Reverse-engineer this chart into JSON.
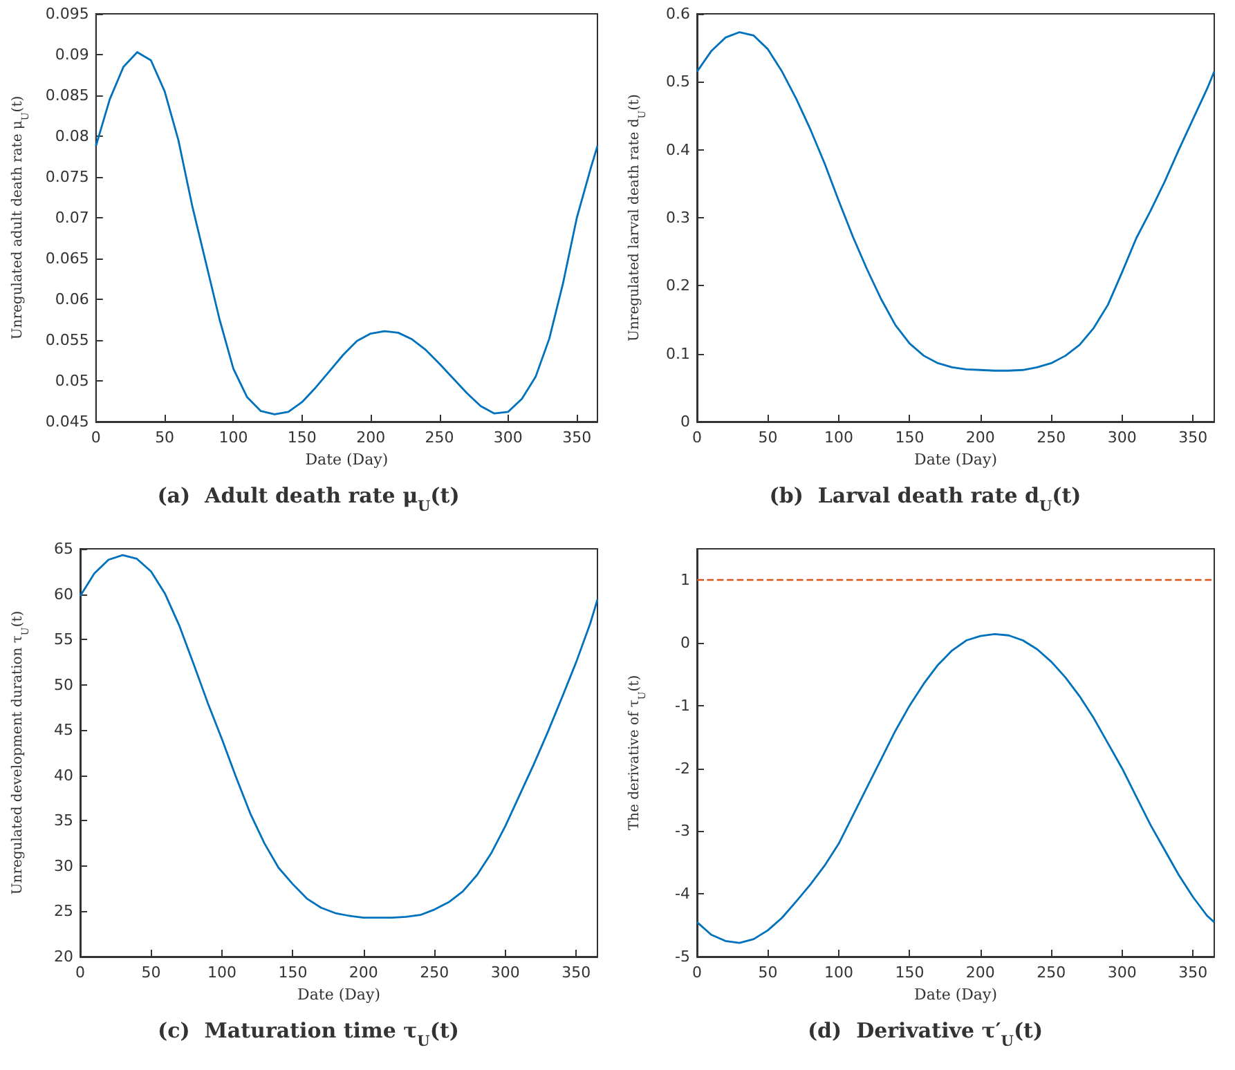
{
  "chart_data": [
    {
      "type": "line",
      "title": "(a)  Adult death rate μ$_{U}$(t)",
      "xlabel": "Date (Day)",
      "ylabel": "Unregulated adult death rate μ$_{U}$(t)",
      "x": [
        0,
        10,
        20,
        30,
        40,
        50,
        60,
        70,
        80,
        90,
        100,
        110,
        120,
        130,
        140,
        150,
        160,
        170,
        180,
        190,
        200,
        210,
        220,
        230,
        240,
        250,
        260,
        270,
        280,
        290,
        300,
        310,
        320,
        330,
        340,
        350,
        360,
        365
      ],
      "series": [
        {
          "color": "#0072bd",
          "values": [
            0.0788,
            0.0845,
            0.0885,
            0.0903,
            0.0893,
            0.0855,
            0.0795,
            0.0715,
            0.0645,
            0.0575,
            0.0515,
            0.048,
            0.0463,
            0.0459,
            0.0462,
            0.0474,
            0.0492,
            0.0512,
            0.0532,
            0.0549,
            0.0558,
            0.0561,
            0.0559,
            0.0551,
            0.0538,
            0.0521,
            0.0503,
            0.0485,
            0.0469,
            0.046,
            0.0462,
            0.0478,
            0.0505,
            0.0552,
            0.062,
            0.07,
            0.076,
            0.0788
          ]
        }
      ],
      "xlim": [
        0,
        365
      ],
      "xticks": [
        0,
        50,
        100,
        150,
        200,
        250,
        300,
        350
      ],
      "ylim": [
        0.045,
        0.095
      ],
      "yticks": [
        0.045,
        0.05,
        0.055,
        0.06,
        0.065,
        0.07,
        0.075,
        0.08,
        0.085,
        0.09,
        0.095
      ]
    },
    {
      "type": "line",
      "title": "(b)  Larval death rate d$_{U}$(t)",
      "xlabel": "Date (Day)",
      "ylabel": "Unregulated larval death rate d$_{U}$(t)",
      "x": [
        0,
        10,
        20,
        30,
        40,
        50,
        60,
        70,
        80,
        90,
        100,
        110,
        120,
        130,
        140,
        150,
        160,
        170,
        180,
        190,
        200,
        210,
        220,
        230,
        240,
        250,
        260,
        270,
        280,
        290,
        300,
        310,
        320,
        330,
        340,
        350,
        360,
        365
      ],
      "series": [
        {
          "color": "#0072bd",
          "values": [
            0.515,
            0.545,
            0.565,
            0.573,
            0.568,
            0.548,
            0.515,
            0.475,
            0.43,
            0.38,
            0.325,
            0.272,
            0.224,
            0.18,
            0.142,
            0.115,
            0.097,
            0.086,
            0.08,
            0.077,
            0.076,
            0.075,
            0.075,
            0.076,
            0.08,
            0.086,
            0.097,
            0.113,
            0.138,
            0.172,
            0.22,
            0.27,
            0.31,
            0.353,
            0.4,
            0.445,
            0.49,
            0.515
          ]
        }
      ],
      "xlim": [
        0,
        365
      ],
      "xticks": [
        0,
        50,
        100,
        150,
        200,
        250,
        300,
        350
      ],
      "ylim": [
        0,
        0.6
      ],
      "yticks": [
        0,
        0.1,
        0.2,
        0.3,
        0.4,
        0.5,
        0.6
      ]
    },
    {
      "type": "line",
      "title": "(c)  Maturation time τ$_{U}$(t)",
      "xlabel": "Date (Day)",
      "ylabel": "Unregulated development duration τ$_{U}$(t)",
      "x": [
        0,
        10,
        20,
        30,
        40,
        50,
        60,
        70,
        80,
        90,
        100,
        110,
        120,
        130,
        140,
        150,
        160,
        170,
        180,
        190,
        200,
        210,
        220,
        230,
        240,
        250,
        260,
        270,
        280,
        290,
        300,
        310,
        320,
        330,
        340,
        350,
        360,
        365
      ],
      "series": [
        {
          "color": "#0072bd",
          "values": [
            59.8,
            62.3,
            63.8,
            64.3,
            63.9,
            62.5,
            60,
            56.5,
            52.3,
            48,
            44,
            39.8,
            35.8,
            32.5,
            29.8,
            28,
            26.4,
            25.4,
            24.8,
            24.5,
            24.3,
            24.3,
            24.3,
            24.4,
            24.6,
            25.2,
            26,
            27.2,
            29,
            31.4,
            34.4,
            37.8,
            41.2,
            44.8,
            48.6,
            52.5,
            56.8,
            59.4
          ]
        }
      ],
      "xlim": [
        0,
        365
      ],
      "xticks": [
        0,
        50,
        100,
        150,
        200,
        250,
        300,
        350
      ],
      "ylim": [
        20,
        65
      ],
      "yticks": [
        20,
        25,
        30,
        35,
        40,
        45,
        50,
        55,
        60,
        65
      ]
    },
    {
      "type": "line",
      "title": "(d)  Derivative τ′$_{U}$(t)",
      "xlabel": "Date (Day)",
      "ylabel": "The derivative of τ$_{U}$(t)",
      "x": [
        0,
        10,
        20,
        30,
        40,
        50,
        60,
        70,
        80,
        90,
        100,
        110,
        120,
        130,
        140,
        150,
        160,
        170,
        180,
        190,
        200,
        210,
        220,
        230,
        240,
        250,
        260,
        270,
        280,
        290,
        300,
        310,
        320,
        330,
        340,
        350,
        360,
        365
      ],
      "series": [
        {
          "color": "#0072bd",
          "values": [
            -4.45,
            -4.65,
            -4.75,
            -4.78,
            -4.72,
            -4.58,
            -4.38,
            -4.12,
            -3.85,
            -3.55,
            -3.2,
            -2.75,
            -2.3,
            -1.85,
            -1.4,
            -1.0,
            -0.65,
            -0.35,
            -0.12,
            0.04,
            0.11,
            0.14,
            0.12,
            0.04,
            -0.1,
            -0.3,
            -0.55,
            -0.85,
            -1.2,
            -1.6,
            -2.0,
            -2.45,
            -2.9,
            -3.3,
            -3.7,
            -4.05,
            -4.35,
            -4.45
          ]
        }
      ],
      "ref_lines": [
        {
          "axis": "y",
          "value": 1,
          "color": "#d95319",
          "line_style": "dashed"
        }
      ],
      "xlim": [
        0,
        365
      ],
      "xticks": [
        0,
        50,
        100,
        150,
        200,
        250,
        300,
        350
      ],
      "ylim": [
        -5,
        1.5
      ],
      "yticks": [
        -5,
        -4,
        -3,
        -2,
        -1,
        0,
        1
      ]
    }
  ]
}
